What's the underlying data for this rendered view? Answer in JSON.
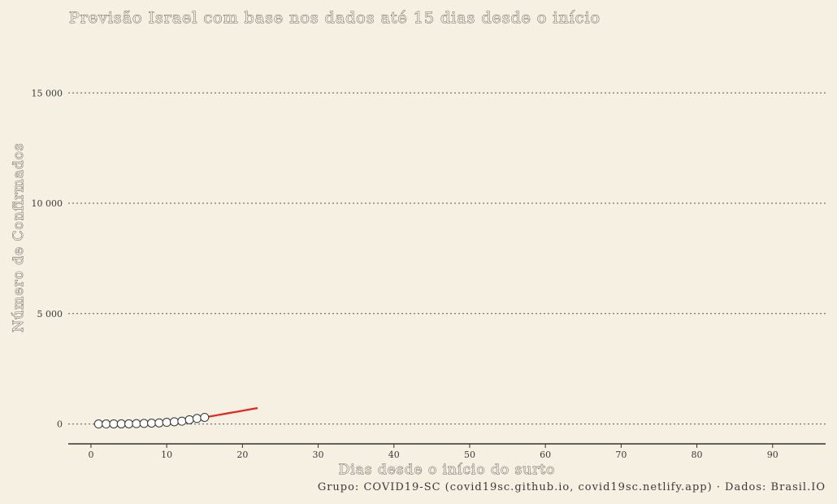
{
  "chart_data": {
    "type": "line",
    "title": "Previsão Israel com base nos dados até 15 dias desde o início",
    "xlabel": "Dias desde o início do surto",
    "ylabel": "Número de Confirmados",
    "xlim": [
      -3,
      97
    ],
    "ylim": [
      -900,
      17000
    ],
    "x_ticks": [
      0,
      10,
      20,
      30,
      40,
      50,
      60,
      70,
      80,
      90
    ],
    "y_ticks": [
      0,
      5000,
      10000,
      15000
    ],
    "y_tick_labels": [
      "0",
      "5 000",
      "10 000",
      "15 000"
    ],
    "grid": "horizontal dotted",
    "series": [
      {
        "kind": "observed",
        "marker": "open-circle",
        "color": "#333333",
        "x": [
          1,
          2,
          3,
          4,
          5,
          6,
          7,
          8,
          9,
          10,
          11,
          12,
          13,
          14,
          15
        ],
        "y": [
          1,
          2,
          3,
          5,
          7,
          15,
          25,
          39,
          50,
          75,
          100,
          126,
          193,
          250,
          298
        ]
      },
      {
        "kind": "forecast",
        "marker": "none",
        "color": "#e8211b",
        "x": [
          15,
          16,
          17,
          18,
          19,
          20,
          21,
          22
        ],
        "y": [
          298,
          360,
          420,
          480,
          540,
          600,
          660,
          720
        ]
      }
    ],
    "caption": "Grupo: COVID19-SC (covid19sc.github.io, covid19sc.netlify.app)  ·  Dados: Brasil.IO"
  }
}
